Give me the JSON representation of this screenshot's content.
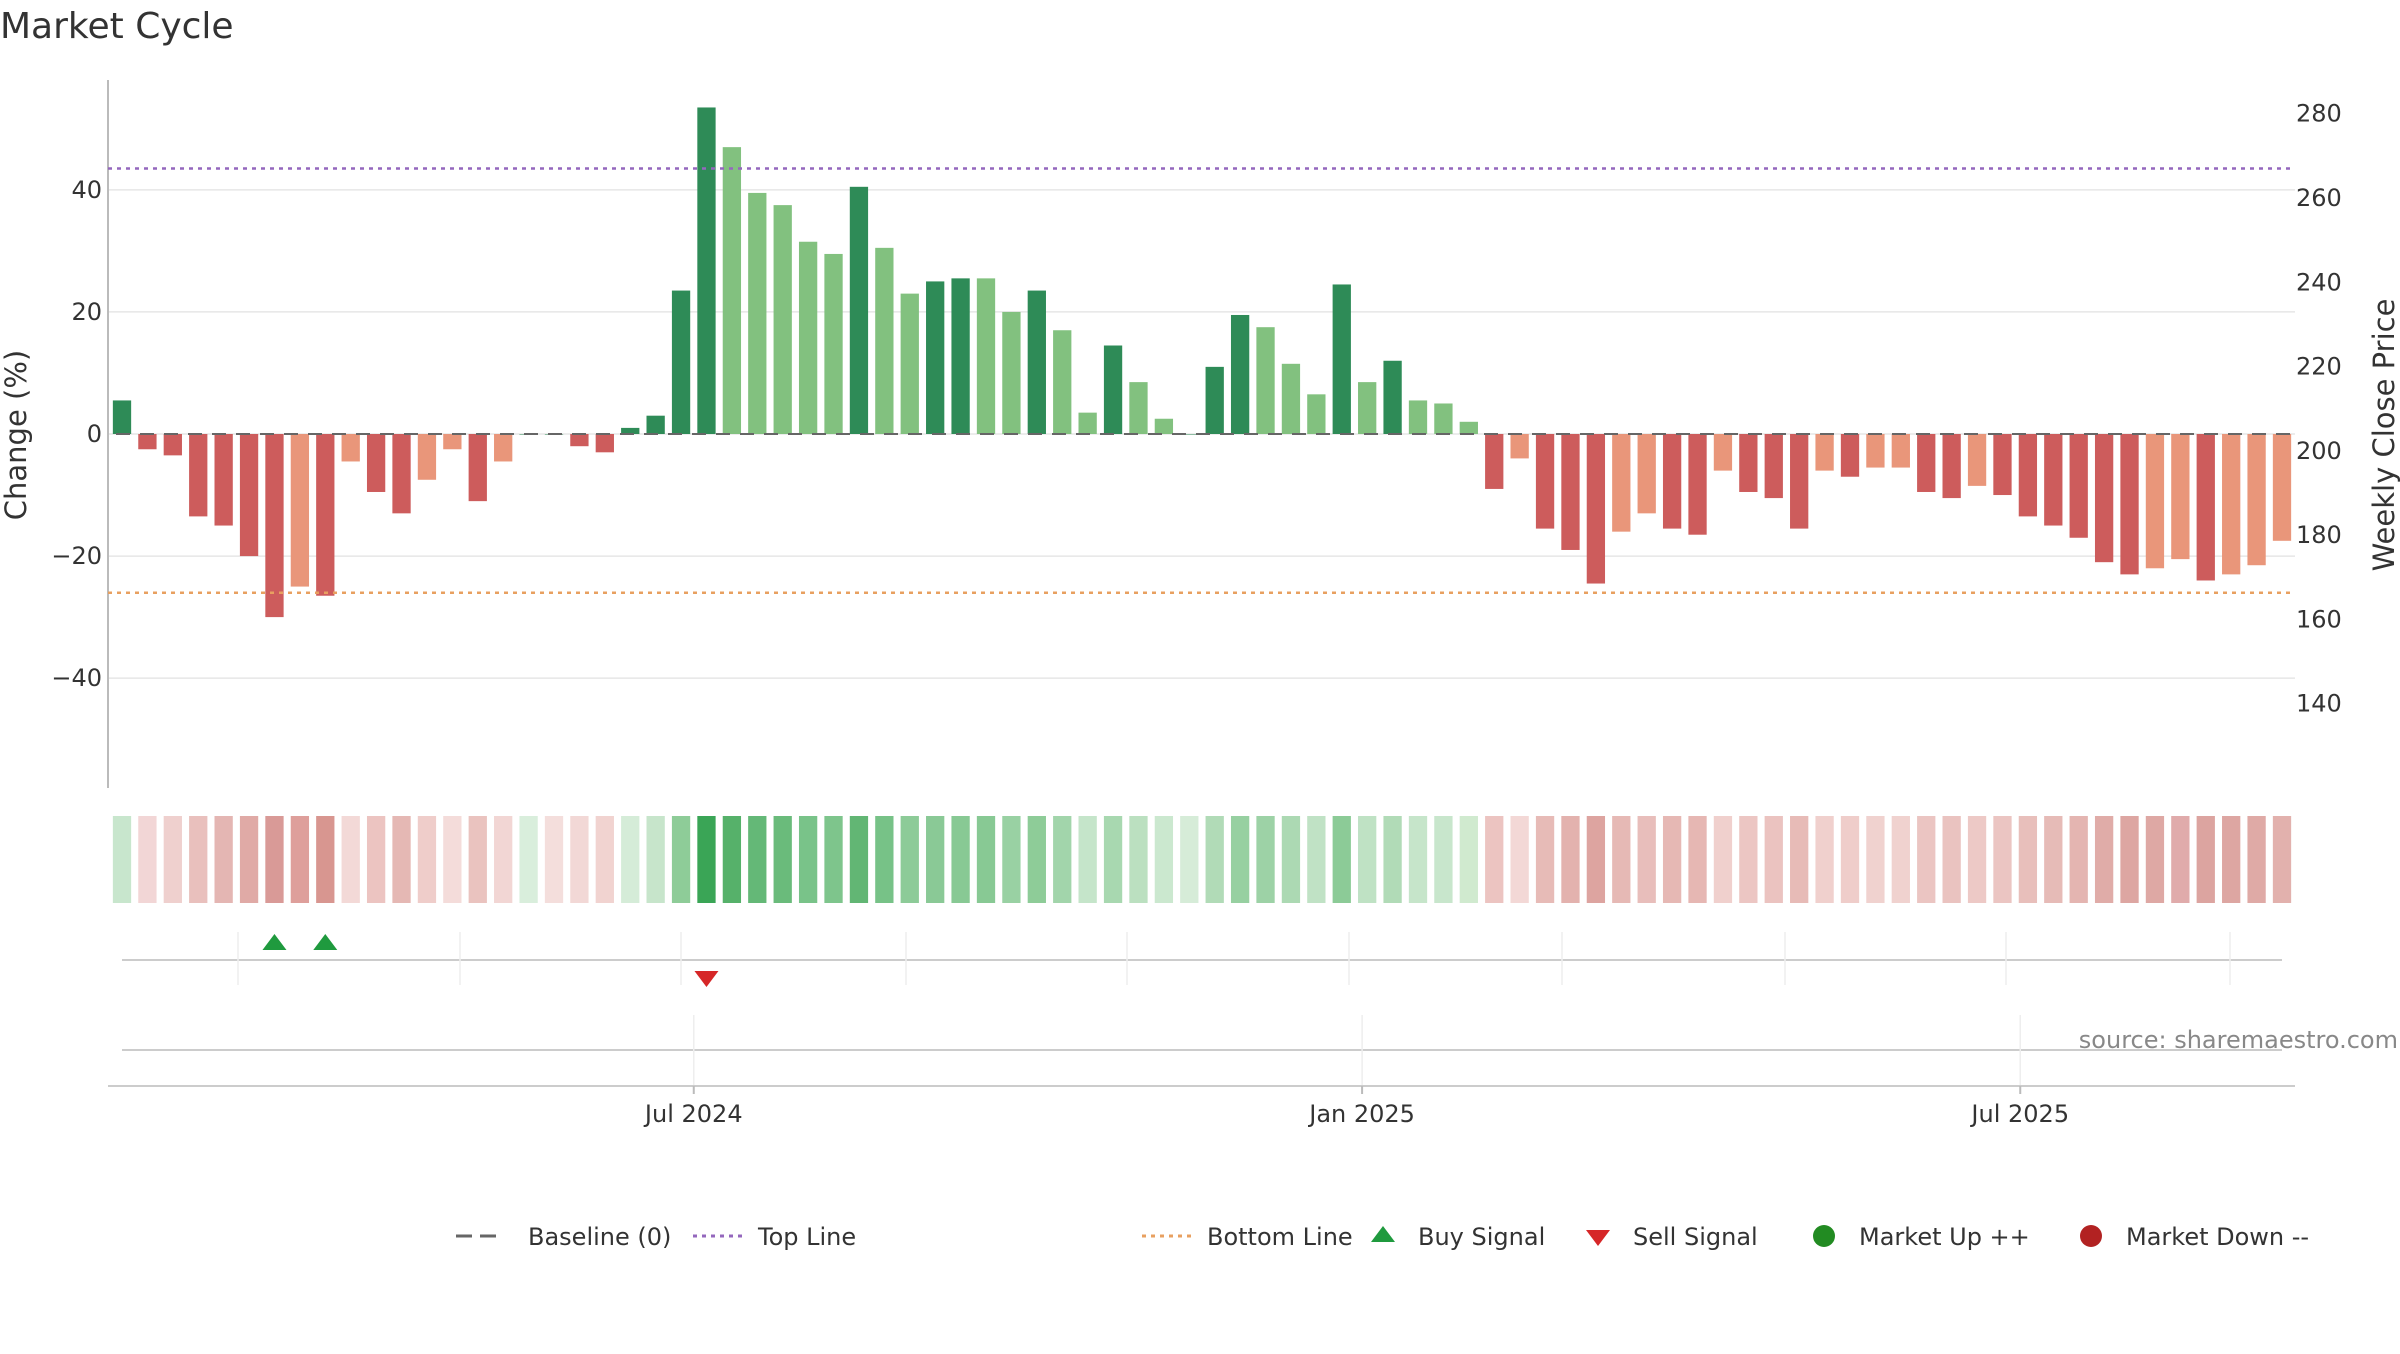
{
  "chart_data": {
    "type": "bar",
    "title": "Market Cycle",
    "ylabel_left": "Change (%)",
    "ylabel_right": "Weekly Close Price",
    "ylim_left": [
      -58,
      58
    ],
    "ylim_right": [
      120,
      288
    ],
    "yticks_left": [
      -40,
      -20,
      0,
      20,
      40
    ],
    "yticks_left_labels": [
      "−40",
      "−20",
      "0",
      "20",
      "40"
    ],
    "yticks_right": [
      140,
      160,
      180,
      200,
      220,
      240,
      260,
      280
    ],
    "yticks_right_labels": [
      "140",
      "160",
      "180",
      "200",
      "220",
      "240",
      "260",
      "280"
    ],
    "xticks": [
      "Jul 2024",
      "Jan 2025",
      "Jul 2025"
    ],
    "xtick_bar_positions": [
      22.5,
      48.8,
      74.7
    ],
    "grid": true,
    "top_line": 43.5,
    "bottom_line": -26,
    "baseline": 0,
    "values": [
      5.5,
      -2.5,
      -3.5,
      -13.5,
      -15,
      -20,
      -30,
      -25,
      -26.5,
      -4.5,
      -9.5,
      -13,
      -7.5,
      -2.5,
      -11,
      -4.5,
      0,
      0,
      -2,
      -3,
      1,
      3,
      23.5,
      53.5,
      47,
      39.5,
      37.5,
      31.5,
      29.5,
      40.5,
      30.5,
      23,
      25,
      25.5,
      25.5,
      20,
      23.5,
      17,
      3.5,
      14.5,
      8.5,
      2.5,
      0,
      11,
      19.5,
      17.5,
      11.5,
      6.5,
      24.5,
      8.5,
      12,
      5.5,
      5,
      2,
      -9,
      -4,
      -15.5,
      -19,
      -24.5,
      -16,
      -13,
      -15.5,
      -16.5,
      -6,
      -9.5,
      -10.5,
      -15.5,
      -6,
      -7,
      -5.5,
      -5.5,
      -9.5,
      -10.5,
      -8.5,
      -10,
      -13.5,
      -15,
      -17,
      -21,
      -23,
      -22,
      -20.5,
      -24,
      -23,
      -21.5,
      -17.5
    ],
    "bar_tones": [
      "dark",
      "dark",
      "dark",
      "dark",
      "dark",
      "dark",
      "dark",
      "light",
      "dark",
      "light",
      "dark",
      "dark",
      "light",
      "light",
      "dark",
      "light",
      "dark",
      "dark",
      "dark",
      "dark",
      "dark",
      "dark",
      "dark",
      "dark",
      "light",
      "light",
      "light",
      "light",
      "light",
      "dark",
      "light",
      "light",
      "dark",
      "dark",
      "light",
      "light",
      "dark",
      "light",
      "light",
      "dark",
      "light",
      "light",
      "dark",
      "dark",
      "dark",
      "light",
      "light",
      "light",
      "dark",
      "light",
      "dark",
      "light",
      "light",
      "light",
      "dark",
      "light",
      "dark",
      "dark",
      "dark",
      "light",
      "light",
      "dark",
      "dark",
      "light",
      "dark",
      "dark",
      "dark",
      "light",
      "dark",
      "light",
      "light",
      "dark",
      "dark",
      "light",
      "dark",
      "dark",
      "dark",
      "dark",
      "dark",
      "dark",
      "light",
      "light",
      "dark",
      "light",
      "light",
      "light"
    ],
    "heat_strip_colors": [
      "#c8e6cd",
      "#f2d6d6",
      "#efd0ce",
      "#e9c0bd",
      "#e4b6b3",
      "#e0aaa6",
      "#d99a97",
      "#de9f9b",
      "#d89690",
      "#f3d9d7",
      "#ecc4c1",
      "#e5b8b4",
      "#efcdca",
      "#f4dcda",
      "#eac3bf",
      "#f2d6d4",
      "#d9eedc",
      "#f4dedc",
      "#f2d8d6",
      "#f1d3d0",
      "#d5ecd8",
      "#c7e5cb",
      "#8ecc98",
      "#3aa556",
      "#56b16a",
      "#64b877",
      "#6abb7b",
      "#79c389",
      "#7ec58c",
      "#62b674",
      "#77c287",
      "#8dcb98",
      "#8ac996",
      "#88c994",
      "#88c994",
      "#99d1a3",
      "#8ecc98",
      "#a2d5ab",
      "#c5e5ca",
      "#a8d8b0",
      "#bbe0c0",
      "#cbe8cf",
      "#d6ecd8",
      "#b1dbb7",
      "#97d0a1",
      "#9dd2a6",
      "#acd9b3",
      "#c0e2c5",
      "#8ccb97",
      "#bfe2c4",
      "#b1dbb7",
      "#c6e5ca",
      "#c8e6cc",
      "#d0eacf",
      "#ecc4c1",
      "#f3d8d6",
      "#e7bbb7",
      "#e3b2ae",
      "#dda4a0",
      "#e6b9b5",
      "#e8bebb",
      "#e6b8b4",
      "#e6b7b3",
      "#f0d0cd",
      "#ecc6c3",
      "#ebc3c0",
      "#e7bbb7",
      "#f0d0cd",
      "#efcdca",
      "#f0d2cf",
      "#f0d2cf",
      "#ebc5c2",
      "#eac3c0",
      "#edc9c6",
      "#ebc5c2",
      "#e8bfbb",
      "#e6bbb7",
      "#e4b5b1",
      "#e0aca8",
      "#dda6a2",
      "#dea8a4",
      "#e0abab",
      "#dca4a0",
      "#dda6a2",
      "#dfaaa6",
      "#e2b1ad"
    ],
    "buy_signals": [
      6,
      8
    ],
    "sell_signals": [
      23
    ],
    "source_text": "source: sharemaestro.com",
    "legend": [
      {
        "label": "Baseline (0)",
        "kind": "dash",
        "color": "#666666"
      },
      {
        "label": "Top Line",
        "kind": "dot",
        "color": "#9467bd"
      },
      {
        "label": "Bottom Line",
        "kind": "dot",
        "color": "#e8a060"
      },
      {
        "label": "Buy Signal",
        "kind": "tri-up",
        "color": "#1f9a3e"
      },
      {
        "label": "Sell Signal",
        "kind": "tri-down",
        "color": "#d62728"
      },
      {
        "label": "Market Up ++",
        "kind": "circle",
        "color": "#228b22"
      },
      {
        "label": "Market Down --",
        "kind": "circle",
        "color": "#b22222"
      }
    ],
    "colors": {
      "up_dark": "#2e8b57",
      "up_light": "#82c17f",
      "down_dark": "#cd5c5c",
      "down_light": "#e9967a",
      "top_line": "#9467bd",
      "bottom_line": "#e8a060",
      "grid": "#e6e6e6"
    }
  }
}
